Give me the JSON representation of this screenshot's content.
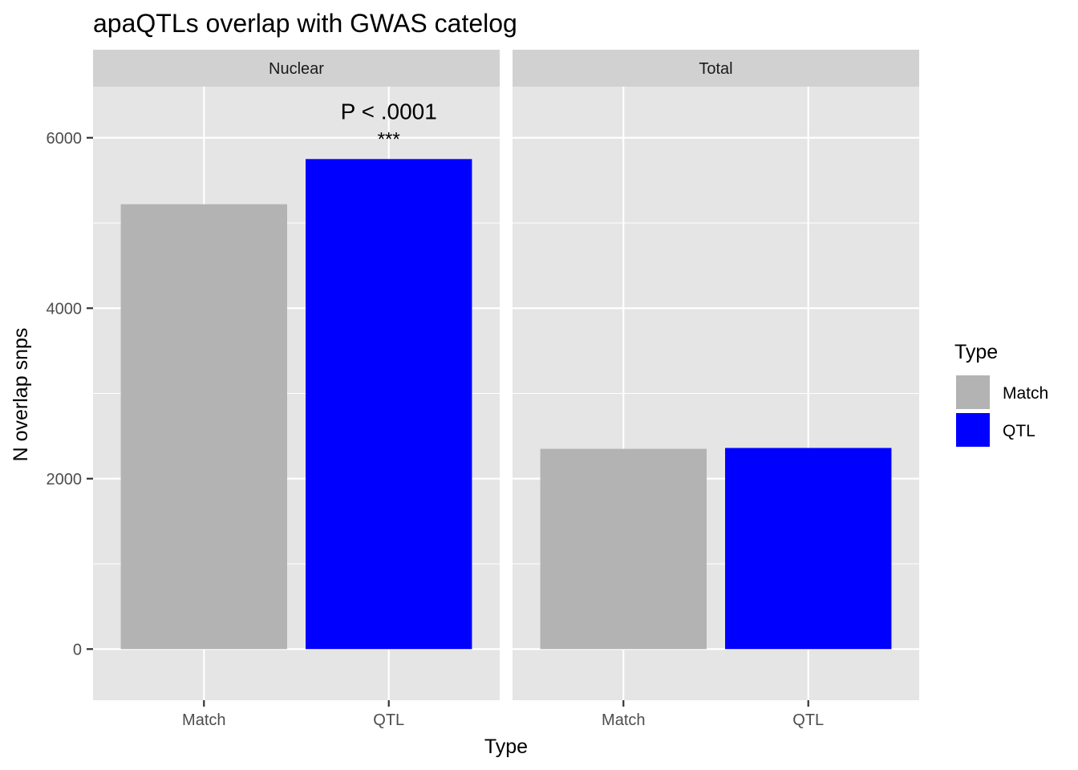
{
  "chart_data": {
    "type": "bar",
    "title": "apaQTLs overlap with GWAS catelog",
    "xlabel": "Type",
    "ylabel": "N overlap snps",
    "ylim": [
      -600,
      6600
    ],
    "yticks": [
      0,
      2000,
      4000,
      6000
    ],
    "categories": [
      "Match",
      "QTL"
    ],
    "colors": {
      "Match": "#b3b3b3",
      "QTL": "#0000ff"
    },
    "panel_bg": "#e5e5e5",
    "strip_bg": "#d1d1d1",
    "grid": true,
    "panels": [
      {
        "name": "Nuclear",
        "values": [
          5220,
          5750
        ],
        "annotation": {
          "category": "QTL",
          "at_y": 5750,
          "pvalue": "P < .0001",
          "stars": "***"
        }
      },
      {
        "name": "Total",
        "values": [
          2350,
          2360
        ]
      }
    ],
    "legend": {
      "title": "Type",
      "position": "right",
      "entries": [
        "Match",
        "QTL"
      ]
    }
  }
}
